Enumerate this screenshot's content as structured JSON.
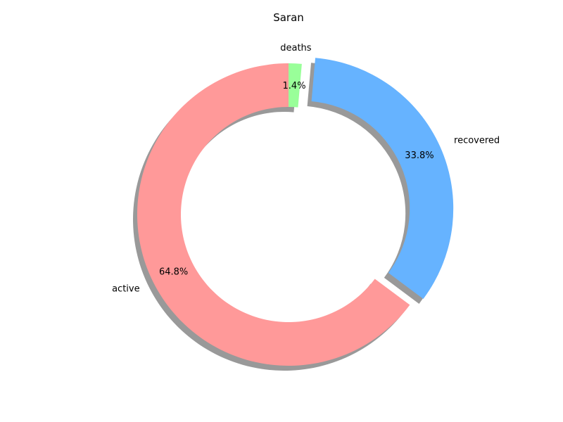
{
  "chart_data": {
    "type": "pie",
    "style": "donut",
    "title": "Saran",
    "slices": [
      {
        "label": "active",
        "value": 64.8,
        "percent_label": "64.8%",
        "color": "#ff9999",
        "exploded": false
      },
      {
        "label": "recovered",
        "value": 33.8,
        "percent_label": "33.8%",
        "color": "#66b3ff",
        "exploded": true
      },
      {
        "label": "deaths",
        "value": 1.4,
        "percent_label": "1.4%",
        "color": "#99ff99",
        "exploded": false
      }
    ],
    "start_angle_deg": 90,
    "direction": "counterclockwise",
    "shadow": true,
    "legend": "none"
  }
}
